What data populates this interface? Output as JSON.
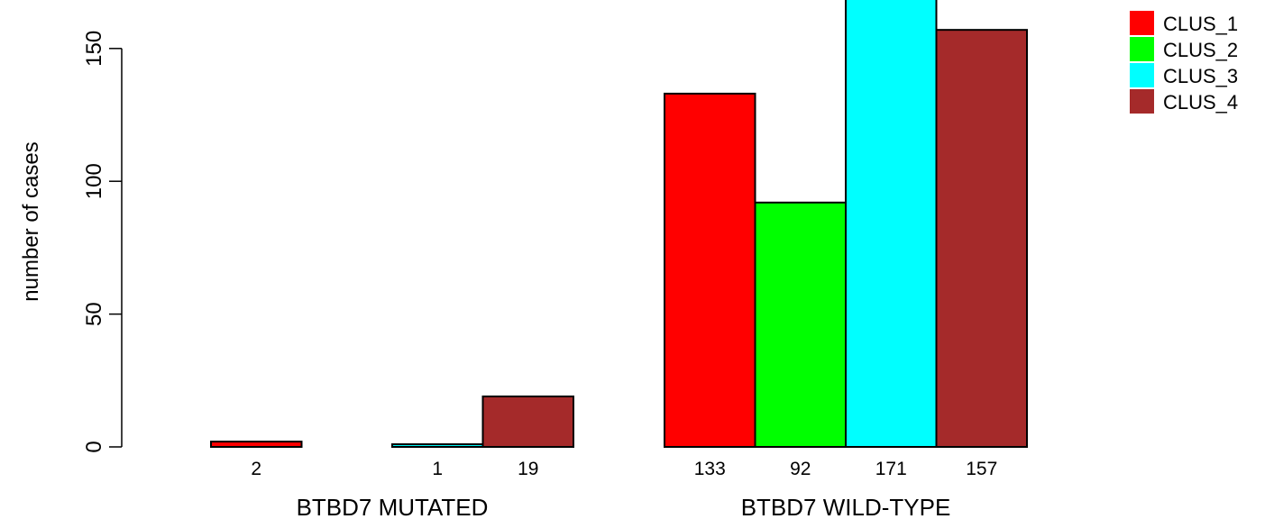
{
  "chart_data": {
    "type": "bar",
    "ylabel": "number of cases",
    "ylim": [
      0,
      170
    ],
    "yticks": [
      0,
      50,
      100,
      150
    ],
    "grid": false,
    "legend_placement": "top-right",
    "groups": [
      {
        "label": "BTBD7 MUTATED",
        "values": [
          2,
          0,
          1,
          19
        ],
        "value_labels": [
          "2",
          "",
          "1",
          "19"
        ]
      },
      {
        "label": "BTBD7 WILD-TYPE",
        "values": [
          133,
          92,
          171,
          157
        ],
        "value_labels": [
          "133",
          "92",
          "171",
          "157"
        ]
      }
    ],
    "series": [
      {
        "name": "CLUS_1",
        "color": "#ff0000"
      },
      {
        "name": "CLUS_2",
        "color": "#00ff00"
      },
      {
        "name": "CLUS_3",
        "color": "#00ffff"
      },
      {
        "name": "CLUS_4",
        "color": "#a52a2a"
      }
    ]
  }
}
